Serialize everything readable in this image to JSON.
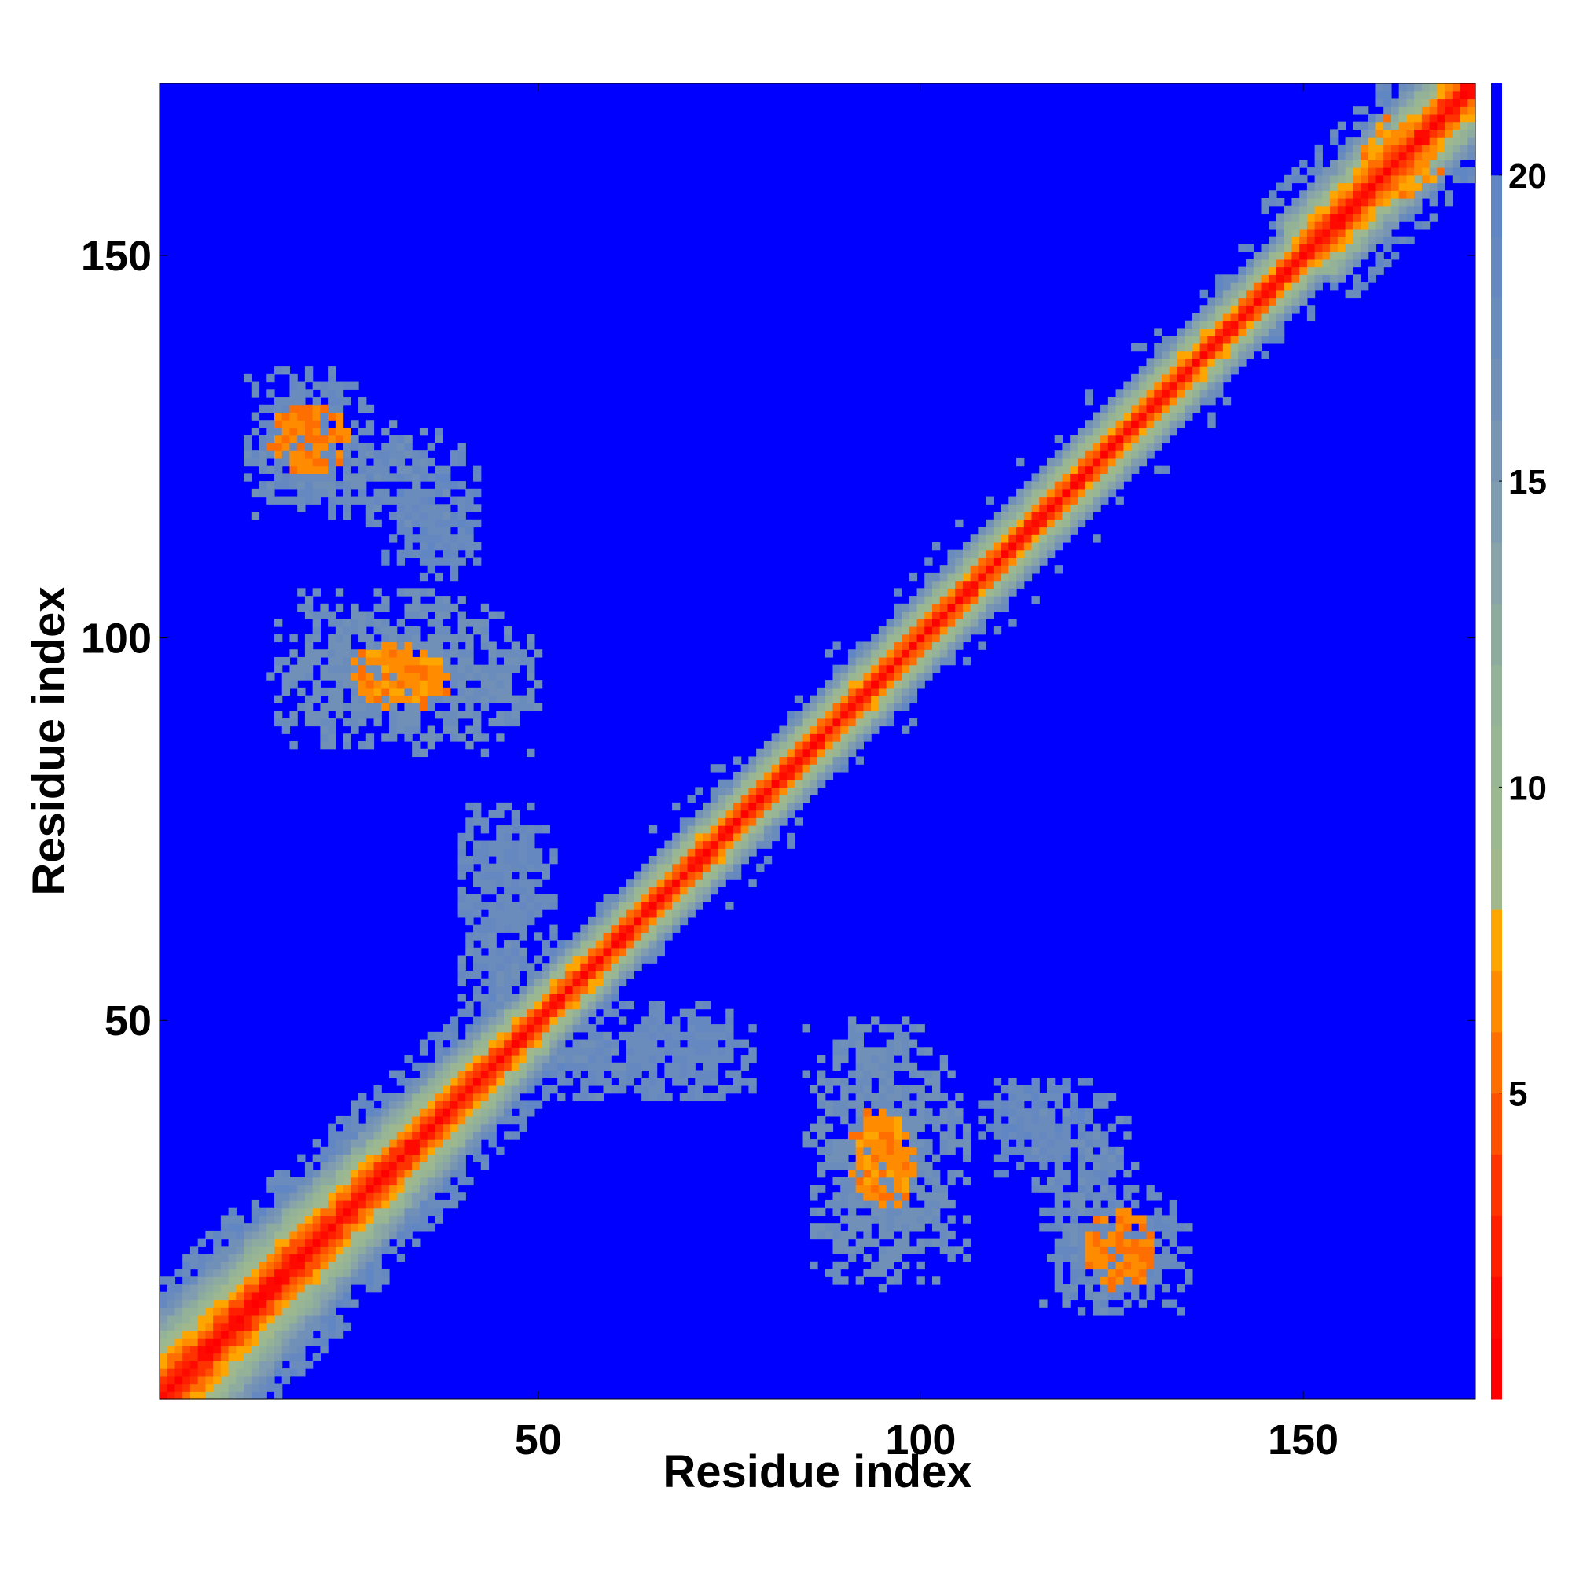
{
  "chart_data": {
    "type": "heatmap",
    "title": "",
    "xlabel": "Residue index",
    "ylabel": "Residue index",
    "n_residues": 172,
    "xlim": [
      0.5,
      172.5
    ],
    "ylim": [
      0.5,
      172.5
    ],
    "x_ticks": [
      50,
      100,
      150
    ],
    "y_ticks": [
      50,
      100,
      150
    ],
    "colorbar": {
      "range": [
        0,
        21.5
      ],
      "ticks": [
        5,
        10,
        15,
        20
      ],
      "levels": [
        {
          "max": 1.0,
          "color": "#ff0000"
        },
        {
          "max": 2.0,
          "color": "#ff0a00"
        },
        {
          "max": 3.0,
          "color": "#ff1f00"
        },
        {
          "max": 4.0,
          "color": "#ff3300"
        },
        {
          "max": 5.0,
          "color": "#ff5000"
        },
        {
          "max": 6.0,
          "color": "#ff6e00"
        },
        {
          "max": 7.0,
          "color": "#ff8c00"
        },
        {
          "max": 8.0,
          "color": "#ffa500"
        },
        {
          "max": 9.0,
          "color": "#a0b88c"
        },
        {
          "max": 10.0,
          "color": "#9cb890"
        },
        {
          "max": 11.0,
          "color": "#98b594"
        },
        {
          "max": 12.0,
          "color": "#94b298"
        },
        {
          "max": 13.0,
          "color": "#8eaba0"
        },
        {
          "max": 14.0,
          "color": "#88a4a8"
        },
        {
          "max": 15.0,
          "color": "#809cb0"
        },
        {
          "max": 16.0,
          "color": "#7896b4"
        },
        {
          "max": 17.0,
          "color": "#7090b8"
        },
        {
          "max": 18.0,
          "color": "#6a8cbc"
        },
        {
          "max": 19.0,
          "color": "#6688c0"
        },
        {
          "max": 20.0,
          "color": "#6086c4"
        },
        {
          "max": 21.5,
          "color": "#0000ff"
        }
      ]
    },
    "matrix": "symmetric residue distance map (172 x 172); values are distances on the colorbar scale. Main diagonal band plus off-diagonal contact regions listed below.",
    "off_diagonal_regions": [
      {
        "x": [
          15,
          25
        ],
        "y": [
          122,
          130
        ],
        "peak": 6.0
      },
      {
        "x": [
          12,
          40
        ],
        "y": [
          115,
          128
        ],
        "peak": 17.5
      },
      {
        "x": [
          33,
          42
        ],
        "y": [
          108,
          122
        ],
        "peak": 18.5
      },
      {
        "x": [
          15,
          50
        ],
        "y": [
          88,
          106
        ],
        "peak": 17.0
      },
      {
        "x": [
          26,
          38
        ],
        "y": [
          92,
          99
        ],
        "peak": 6.5
      },
      {
        "x": [
          40,
          50
        ],
        "y": [
          62,
          77
        ],
        "peak": 18.0
      },
      {
        "x": [
          40,
          52
        ],
        "y": [
          50,
          62
        ],
        "peak": 17.5
      },
      {
        "x": [
          52,
          78
        ],
        "y": [
          40,
          52
        ],
        "peak": 18.0
      },
      {
        "x": [
          85,
          100
        ],
        "y": [
          16,
          50
        ],
        "peak": 17.0
      },
      {
        "x": [
          91,
          98
        ],
        "y": [
          27,
          38
        ],
        "peak": 6.5
      },
      {
        "x": [
          110,
          125
        ],
        "y": [
          30,
          42
        ],
        "peak": 18.5
      },
      {
        "x": [
          118,
          135
        ],
        "y": [
          12,
          28
        ],
        "peak": 18.0
      },
      {
        "x": [
          124,
          130
        ],
        "y": [
          16,
          22
        ],
        "peak": 6.0
      },
      {
        "x": [
          158,
          166
        ],
        "y": [
          156,
          168
        ],
        "peak": 6.5
      }
    ]
  }
}
